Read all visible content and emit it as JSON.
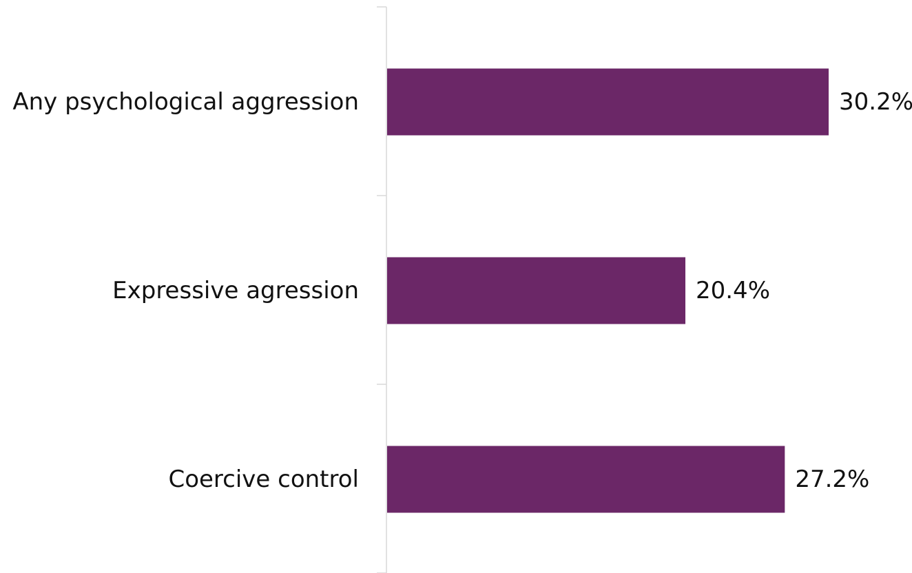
{
  "chart_data": {
    "type": "bar",
    "orientation": "horizontal",
    "categories": [
      "Any psychological aggression",
      "Expressive agression",
      "Coercive control"
    ],
    "values": [
      30.2,
      20.4,
      27.2
    ],
    "value_labels": [
      "30.2%",
      "20.4%",
      "27.2%"
    ],
    "unit": "%",
    "bar_color": "#6b2767",
    "title": "",
    "xlabel": "",
    "ylabel": "",
    "xlim": [
      0,
      36
    ],
    "grid": false,
    "legend": "none"
  }
}
